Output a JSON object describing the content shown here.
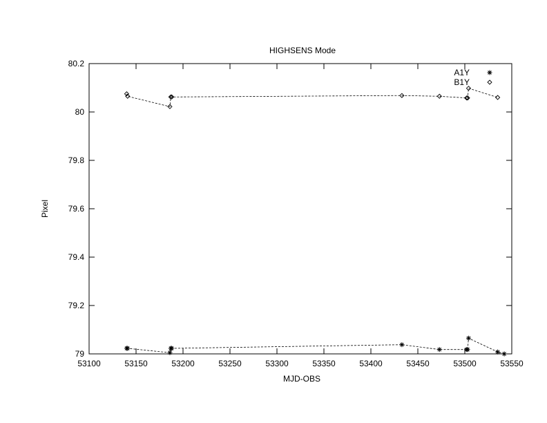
{
  "chart_data": {
    "type": "line",
    "title": "HIGHSENS Mode",
    "xlabel": "MJD-OBS",
    "ylabel": "Pixel",
    "xlim": [
      53100,
      53550
    ],
    "ylim": [
      79.0,
      80.2
    ],
    "xticks": [
      "53100",
      "53150",
      "53200",
      "53250",
      "53300",
      "53350",
      "53400",
      "53450",
      "53500",
      "53550"
    ],
    "yticks": [
      "79",
      "79.2",
      "79.4",
      "79.6",
      "79.8",
      "80",
      "80.2"
    ],
    "grid": false,
    "legend_position": "top-right",
    "series": [
      {
        "name": "A1Y",
        "marker": "asterisk",
        "x": [
          53140,
          53141,
          53186,
          53187,
          53188,
          53433,
          53473,
          53502,
          53503,
          53504,
          53535,
          53542
        ],
        "y": [
          79.023,
          79.023,
          79.005,
          79.023,
          79.023,
          79.038,
          79.018,
          79.018,
          79.018,
          79.065,
          79.008,
          79.0
        ]
      },
      {
        "name": "B1Y",
        "marker": "diamond",
        "x": [
          53140,
          53141,
          53186,
          53187,
          53188,
          53433,
          53473,
          53502,
          53503,
          53504,
          53535
        ],
        "y": [
          80.075,
          80.065,
          80.022,
          80.062,
          80.062,
          80.068,
          80.065,
          80.058,
          80.058,
          80.098,
          80.06
        ]
      }
    ]
  },
  "colors": {
    "background": "#ffffff",
    "axis": "#000000",
    "series": "#000000"
  }
}
